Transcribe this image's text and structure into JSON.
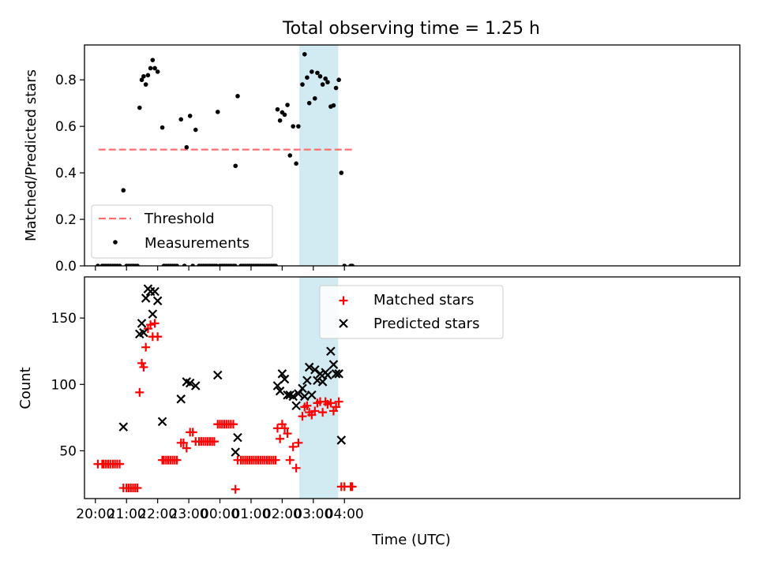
{
  "figure": {
    "title": "Total observing time = 1.25 h"
  },
  "chart_data": [
    {
      "type": "scatter",
      "ylabel": "Matched/Predicted stars",
      "xlabel": "",
      "x_unit": "hours since 20:00 UTC",
      "xlim": [
        -0.35,
        20.7
      ],
      "ylim": [
        0,
        0.95
      ],
      "yticks": [
        0.0,
        0.2,
        0.4,
        0.6,
        0.8
      ],
      "ytick_labels": [
        "0.0",
        "0.2",
        "0.4",
        "0.6",
        "0.8"
      ],
      "highlight_span": [
        6.55,
        7.8
      ],
      "highlight_color": "#add8e6",
      "threshold": {
        "name": "Threshold",
        "value": 0.5,
        "x": [
          0.1,
          8.25
        ],
        "color": "#ff6f6f"
      },
      "legend": {
        "position": "lower-left",
        "entries": [
          "Threshold",
          "Measurements"
        ]
      },
      "series": [
        {
          "name": "Measurements",
          "color": "#000000",
          "points": [
            [
              0.08,
              0.0
            ],
            [
              0.22,
              0.0
            ],
            [
              0.27,
              0.0
            ],
            [
              0.34,
              0.0
            ],
            [
              0.41,
              0.0
            ],
            [
              0.48,
              0.0
            ],
            [
              0.56,
              0.0
            ],
            [
              0.63,
              0.0
            ],
            [
              0.7,
              0.0
            ],
            [
              0.78,
              0.0
            ],
            [
              0.9,
              0.325
            ],
            [
              1.0,
              0.0
            ],
            [
              1.07,
              0.0
            ],
            [
              1.14,
              0.0
            ],
            [
              1.21,
              0.0
            ],
            [
              1.28,
              0.0
            ],
            [
              1.35,
              0.0
            ],
            [
              1.42,
              0.68
            ],
            [
              1.49,
              0.8
            ],
            [
              1.55,
              0.815
            ],
            [
              1.62,
              0.78
            ],
            [
              1.69,
              0.82
            ],
            [
              1.77,
              0.85
            ],
            [
              1.84,
              0.885
            ],
            [
              1.91,
              0.85
            ],
            [
              2.0,
              0.835
            ],
            [
              2.15,
              0.595
            ],
            [
              2.2,
              0.0
            ],
            [
              2.27,
              0.0
            ],
            [
              2.34,
              0.0
            ],
            [
              2.41,
              0.0
            ],
            [
              2.48,
              0.0
            ],
            [
              2.55,
              0.0
            ],
            [
              2.62,
              0.0
            ],
            [
              2.75,
              0.63
            ],
            [
              2.86,
              0.0
            ],
            [
              2.93,
              0.51
            ],
            [
              3.04,
              0.645
            ],
            [
              3.13,
              0.0
            ],
            [
              3.22,
              0.585
            ],
            [
              3.33,
              0.0
            ],
            [
              3.4,
              0.0
            ],
            [
              3.47,
              0.0
            ],
            [
              3.54,
              0.0
            ],
            [
              3.61,
              0.0
            ],
            [
              3.68,
              0.0
            ],
            [
              3.75,
              0.0
            ],
            [
              3.82,
              0.0
            ],
            [
              3.89,
              0.0
            ],
            [
              4.0,
              0.0
            ],
            [
              4.07,
              0.0
            ],
            [
              4.14,
              0.0
            ],
            [
              4.21,
              0.0
            ],
            [
              4.28,
              0.0
            ],
            [
              4.35,
              0.0
            ],
            [
              4.43,
              0.0
            ],
            [
              4.49,
              0.0
            ],
            [
              3.93,
              0.662
            ],
            [
              4.5,
              0.43
            ],
            [
              4.57,
              0.73
            ],
            [
              4.67,
              0.0
            ],
            [
              4.74,
              0.0
            ],
            [
              4.81,
              0.0
            ],
            [
              4.88,
              0.0
            ],
            [
              4.95,
              0.0
            ],
            [
              5.02,
              0.0
            ],
            [
              5.09,
              0.0
            ],
            [
              5.16,
              0.0
            ],
            [
              5.23,
              0.0
            ],
            [
              5.3,
              0.0
            ],
            [
              5.37,
              0.0
            ],
            [
              5.44,
              0.0
            ],
            [
              5.51,
              0.0
            ],
            [
              5.58,
              0.0
            ],
            [
              5.65,
              0.0
            ],
            [
              5.72,
              0.0
            ],
            [
              5.79,
              0.0
            ],
            [
              5.85,
              0.673
            ],
            [
              5.93,
              0.625
            ],
            [
              6.0,
              0.66
            ],
            [
              6.08,
              0.65
            ],
            [
              6.17,
              0.692
            ],
            [
              6.25,
              0.475
            ],
            [
              6.35,
              0.6
            ],
            [
              6.45,
              0.44
            ],
            [
              6.52,
              0.6
            ],
            [
              6.65,
              0.78
            ],
            [
              6.72,
              0.91
            ],
            [
              6.8,
              0.81
            ],
            [
              6.87,
              0.7
            ],
            [
              6.95,
              0.835
            ],
            [
              7.05,
              0.72
            ],
            [
              7.13,
              0.83
            ],
            [
              7.22,
              0.815
            ],
            [
              7.3,
              0.78
            ],
            [
              7.39,
              0.805
            ],
            [
              7.46,
              0.79
            ],
            [
              7.56,
              0.685
            ],
            [
              7.65,
              0.69
            ],
            [
              7.73,
              0.765
            ],
            [
              7.82,
              0.8
            ],
            [
              7.9,
              0.4
            ],
            [
              8.0,
              0.0
            ],
            [
              8.2,
              0.0
            ],
            [
              8.25,
              0.0
            ]
          ]
        }
      ]
    },
    {
      "type": "scatter",
      "ylabel": "Count",
      "xlabel": "Time (UTC)",
      "x_unit": "hours since 20:00 UTC",
      "xlim": [
        -0.35,
        20.7
      ],
      "ylim": [
        14,
        181
      ],
      "yticks": [
        50,
        100,
        150
      ],
      "ytick_labels": [
        "50",
        "100",
        "150"
      ],
      "xticks": [
        0,
        1,
        2,
        3,
        4,
        5,
        6,
        7,
        8
      ],
      "xtick_labels": [
        "20:00",
        "21:00",
        "22:00",
        "23:00",
        "00:00",
        "01:00",
        "02:00",
        "03:00",
        "04:00"
      ],
      "highlight_span": [
        6.55,
        7.8
      ],
      "highlight_color": "#add8e6",
      "legend": {
        "position": "upper-center",
        "entries": [
          "Matched stars",
          "Predicted stars"
        ]
      },
      "series": [
        {
          "name": "Matched stars",
          "marker": "+",
          "color": "#ff0000",
          "points": [
            [
              0.08,
              40
            ],
            [
              0.22,
              40
            ],
            [
              0.27,
              40
            ],
            [
              0.34,
              40
            ],
            [
              0.41,
              40
            ],
            [
              0.48,
              40
            ],
            [
              0.56,
              40
            ],
            [
              0.63,
              40
            ],
            [
              0.7,
              40
            ],
            [
              0.78,
              40
            ],
            [
              0.9,
              22
            ],
            [
              1.0,
              22
            ],
            [
              1.07,
              22
            ],
            [
              1.14,
              22
            ],
            [
              1.21,
              22
            ],
            [
              1.28,
              22
            ],
            [
              1.35,
              22
            ],
            [
              1.42,
              94
            ],
            [
              1.49,
              116
            ],
            [
              1.55,
              113
            ],
            [
              1.62,
              128
            ],
            [
              1.69,
              142
            ],
            [
              1.77,
              145
            ],
            [
              1.84,
              136
            ],
            [
              1.91,
              146
            ],
            [
              2.0,
              136
            ],
            [
              2.15,
              43
            ],
            [
              2.2,
              43
            ],
            [
              2.27,
              43
            ],
            [
              2.34,
              43
            ],
            [
              2.41,
              43
            ],
            [
              2.48,
              43
            ],
            [
              2.55,
              43
            ],
            [
              2.62,
              43
            ],
            [
              2.75,
              56
            ],
            [
              2.83,
              56
            ],
            [
              2.93,
              52
            ],
            [
              3.04,
              64
            ],
            [
              3.13,
              64
            ],
            [
              3.22,
              57
            ],
            [
              3.33,
              57
            ],
            [
              3.4,
              57
            ],
            [
              3.47,
              57
            ],
            [
              3.54,
              57
            ],
            [
              3.61,
              57
            ],
            [
              3.68,
              57
            ],
            [
              3.75,
              57
            ],
            [
              3.82,
              57
            ],
            [
              3.93,
              70
            ],
            [
              4.0,
              70
            ],
            [
              4.07,
              70
            ],
            [
              4.14,
              70
            ],
            [
              4.21,
              70
            ],
            [
              4.28,
              70
            ],
            [
              4.35,
              70
            ],
            [
              4.43,
              70
            ],
            [
              4.5,
              21
            ],
            [
              4.57,
              43
            ],
            [
              4.67,
              43
            ],
            [
              4.74,
              43
            ],
            [
              4.81,
              43
            ],
            [
              4.88,
              43
            ],
            [
              4.95,
              43
            ],
            [
              5.02,
              43
            ],
            [
              5.09,
              43
            ],
            [
              5.16,
              43
            ],
            [
              5.23,
              43
            ],
            [
              5.3,
              43
            ],
            [
              5.37,
              43
            ],
            [
              5.44,
              43
            ],
            [
              5.51,
              43
            ],
            [
              5.58,
              43
            ],
            [
              5.65,
              43
            ],
            [
              5.72,
              43
            ],
            [
              5.79,
              43
            ],
            [
              5.85,
              67
            ],
            [
              5.93,
              59
            ],
            [
              6.0,
              70
            ],
            [
              6.08,
              67
            ],
            [
              6.17,
              63
            ],
            [
              6.25,
              43
            ],
            [
              6.35,
              53
            ],
            [
              6.45,
              37
            ],
            [
              6.52,
              56
            ],
            [
              6.65,
              76
            ],
            [
              6.72,
              83
            ],
            [
              6.8,
              84
            ],
            [
              6.87,
              79
            ],
            [
              6.95,
              77
            ],
            [
              7.05,
              80
            ],
            [
              7.13,
              86
            ],
            [
              7.22,
              87
            ],
            [
              7.3,
              79
            ],
            [
              7.39,
              87
            ],
            [
              7.46,
              85
            ],
            [
              7.56,
              86
            ],
            [
              7.65,
              80
            ],
            [
              7.73,
              83
            ],
            [
              7.82,
              87
            ],
            [
              7.9,
              23
            ],
            [
              8.0,
              23
            ],
            [
              8.2,
              23
            ],
            [
              8.25,
              23
            ]
          ]
        },
        {
          "name": "Predicted stars",
          "marker": "x",
          "color": "#000000",
          "points": [
            [
              0.9,
              68
            ],
            [
              1.42,
              138
            ],
            [
              1.49,
              146
            ],
            [
              1.55,
              139
            ],
            [
              1.62,
              165
            ],
            [
              1.69,
              172
            ],
            [
              1.77,
              170
            ],
            [
              1.84,
              153
            ],
            [
              1.91,
              170
            ],
            [
              2.0,
              163
            ],
            [
              2.15,
              72
            ],
            [
              2.75,
              89
            ],
            [
              2.93,
              102
            ],
            [
              3.04,
              101
            ],
            [
              3.22,
              99
            ],
            [
              3.93,
              107
            ],
            [
              4.5,
              49
            ],
            [
              4.57,
              60
            ],
            [
              5.85,
              99
            ],
            [
              5.93,
              95
            ],
            [
              6.0,
              108
            ],
            [
              6.08,
              104
            ],
            [
              6.17,
              92
            ],
            [
              6.25,
              92
            ],
            [
              6.35,
              91
            ],
            [
              6.45,
              84
            ],
            [
              6.52,
              93
            ],
            [
              6.65,
              97
            ],
            [
              6.72,
              91
            ],
            [
              6.8,
              103
            ],
            [
              6.87,
              113
            ],
            [
              6.95,
              92
            ],
            [
              7.05,
              111
            ],
            [
              7.13,
              103
            ],
            [
              7.22,
              108
            ],
            [
              7.3,
              102
            ],
            [
              7.39,
              109
            ],
            [
              7.46,
              107
            ],
            [
              7.56,
              125
            ],
            [
              7.65,
              115
            ],
            [
              7.73,
              108
            ],
            [
              7.82,
              108
            ],
            [
              7.9,
              58
            ]
          ]
        }
      ]
    }
  ]
}
